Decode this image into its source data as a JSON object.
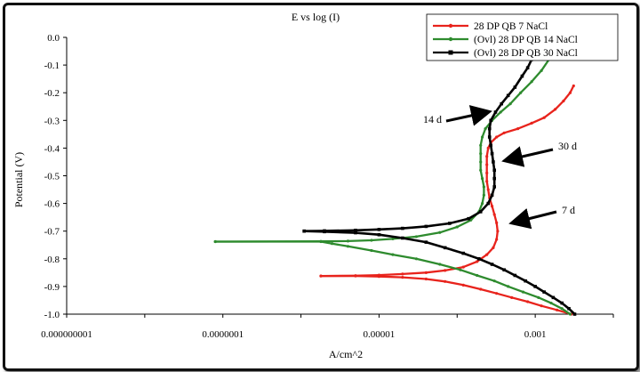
{
  "chart_data": {
    "type": "line",
    "title": "E vs log (I)",
    "xlabel": "A/cm^2",
    "ylabel": "Potential (V)",
    "x_scale": "log",
    "xlim": [
      1e-09,
      0.01
    ],
    "ylim": [
      -1.0,
      0.0
    ],
    "x_ticks": [
      {
        "value": 1e-09,
        "label": "0.000000001"
      },
      {
        "value": 1e-07,
        "label": "0.0000001"
      },
      {
        "value": 1e-05,
        "label": "0.00001"
      },
      {
        "value": 0.001,
        "label": "0.001"
      }
    ],
    "y_ticks": [
      {
        "value": 0.0,
        "label": "0.0"
      },
      {
        "value": -0.1,
        "label": "-0.1"
      },
      {
        "value": -0.2,
        "label": "-0.2"
      },
      {
        "value": -0.3,
        "label": "-0.3"
      },
      {
        "value": -0.4,
        "label": "-0.4"
      },
      {
        "value": -0.5,
        "label": "-0.5"
      },
      {
        "value": -0.6,
        "label": "-0.6"
      },
      {
        "value": -0.7,
        "label": "-0.7"
      },
      {
        "value": -0.8,
        "label": "-0.8"
      },
      {
        "value": -0.9,
        "label": "-0.9"
      },
      {
        "value": -1.0,
        "label": "-1.0"
      }
    ],
    "grid": false,
    "legend": "top-right",
    "series": [
      {
        "name": "28 DP QB 7 NaCl",
        "color": "#e8231c",
        "marker": "dot",
        "cathodic": [
          [
            0.0029,
            -1.0
          ],
          [
            0.0019,
            -0.985
          ],
          [
            0.0012,
            -0.97
          ],
          [
            0.0008,
            -0.955
          ],
          [
            0.0005,
            -0.94
          ],
          [
            0.00032,
            -0.925
          ],
          [
            0.0002,
            -0.91
          ],
          [
            0.00012,
            -0.895
          ],
          [
            7e-05,
            -0.882
          ],
          [
            4e-05,
            -0.873
          ],
          [
            2e-05,
            -0.867
          ],
          [
            1e-05,
            -0.864
          ],
          [
            5e-06,
            -0.862
          ],
          [
            1.8e-06,
            -0.862
          ]
        ],
        "anodic": [
          [
            1.8e-06,
            -0.862
          ],
          [
            5e-06,
            -0.861
          ],
          [
            1e-05,
            -0.859
          ],
          [
            2e-05,
            -0.855
          ],
          [
            4e-05,
            -0.85
          ],
          [
            7e-05,
            -0.842
          ],
          [
            0.00012,
            -0.83
          ],
          [
            0.00018,
            -0.81
          ],
          [
            0.00024,
            -0.785
          ],
          [
            0.00029,
            -0.76
          ],
          [
            0.00032,
            -0.73
          ],
          [
            0.00033,
            -0.7
          ],
          [
            0.00032,
            -0.67
          ],
          [
            0.0003,
            -0.64
          ],
          [
            0.00028,
            -0.61
          ],
          [
            0.00026,
            -0.58
          ],
          [
            0.00025,
            -0.55
          ],
          [
            0.00024,
            -0.52
          ],
          [
            0.00024,
            -0.49
          ],
          [
            0.00024,
            -0.46
          ],
          [
            0.00024,
            -0.43
          ],
          [
            0.00025,
            -0.4
          ],
          [
            0.00027,
            -0.38
          ],
          [
            0.00032,
            -0.36
          ],
          [
            0.0004,
            -0.345
          ],
          [
            0.0006,
            -0.33
          ],
          [
            0.0009,
            -0.31
          ],
          [
            0.0013,
            -0.29
          ],
          [
            0.0018,
            -0.26
          ],
          [
            0.0023,
            -0.23
          ],
          [
            0.0028,
            -0.2
          ],
          [
            0.0031,
            -0.175
          ]
        ]
      },
      {
        "name": "(Ovl) 28 DP QB 14 NaCl",
        "color": "#2e8b2e",
        "marker": "dot",
        "cathodic": [
          [
            0.0028,
            -1.0
          ],
          [
            0.0022,
            -0.98
          ],
          [
            0.0016,
            -0.96
          ],
          [
            0.0011,
            -0.94
          ],
          [
            0.0007,
            -0.92
          ],
          [
            0.00045,
            -0.9
          ],
          [
            0.0003,
            -0.88
          ],
          [
            0.00018,
            -0.86
          ],
          [
            0.00011,
            -0.84
          ],
          [
            6e-05,
            -0.82
          ],
          [
            3e-05,
            -0.8
          ],
          [
            1.5e-05,
            -0.785
          ],
          [
            8e-06,
            -0.77
          ],
          [
            4e-06,
            -0.755
          ],
          [
            2.5e-06,
            -0.745
          ],
          [
            1.8e-06,
            -0.738
          ],
          [
            8e-08,
            -0.738
          ]
        ],
        "anodic": [
          [
            8e-08,
            -0.738
          ],
          [
            1.8e-06,
            -0.737
          ],
          [
            4e-06,
            -0.736
          ],
          [
            8e-06,
            -0.733
          ],
          [
            1.5e-05,
            -0.728
          ],
          [
            3e-05,
            -0.72
          ],
          [
            6e-05,
            -0.705
          ],
          [
            0.0001,
            -0.685
          ],
          [
            0.00015,
            -0.66
          ],
          [
            0.00019,
            -0.63
          ],
          [
            0.00021,
            -0.6
          ],
          [
            0.00022,
            -0.57
          ],
          [
            0.00022,
            -0.54
          ],
          [
            0.00021,
            -0.51
          ],
          [
            0.0002,
            -0.48
          ],
          [
            0.0002,
            -0.45
          ],
          [
            0.0002,
            -0.42
          ],
          [
            0.0002,
            -0.39
          ],
          [
            0.00021,
            -0.36
          ],
          [
            0.00023,
            -0.33
          ],
          [
            0.00028,
            -0.3
          ],
          [
            0.00036,
            -0.27
          ],
          [
            0.00048,
            -0.24
          ],
          [
            0.00065,
            -0.2
          ],
          [
            0.0009,
            -0.16
          ],
          [
            0.0012,
            -0.12
          ],
          [
            0.0015,
            -0.08
          ],
          [
            0.0018,
            -0.05
          ]
        ]
      },
      {
        "name": "(Ovl) 28 DP QB 30 NaCl",
        "color": "#000000",
        "marker": "square",
        "cathodic": [
          [
            0.0032,
            -1.0
          ],
          [
            0.0027,
            -0.98
          ],
          [
            0.0022,
            -0.96
          ],
          [
            0.0017,
            -0.94
          ],
          [
            0.0013,
            -0.92
          ],
          [
            0.001,
            -0.9
          ],
          [
            0.00075,
            -0.88
          ],
          [
            0.00055,
            -0.86
          ],
          [
            0.0004,
            -0.84
          ],
          [
            0.00028,
            -0.82
          ],
          [
            0.00019,
            -0.8
          ],
          [
            0.00012,
            -0.78
          ],
          [
            7e-05,
            -0.76
          ],
          [
            4e-05,
            -0.74
          ],
          [
            2e-05,
            -0.725
          ],
          [
            1e-05,
            -0.713
          ],
          [
            5e-06,
            -0.706
          ],
          [
            2e-06,
            -0.702
          ],
          [
            1.1e-06,
            -0.7
          ]
        ],
        "anodic": [
          [
            1.1e-06,
            -0.7
          ],
          [
            2e-06,
            -0.699
          ],
          [
            5e-06,
            -0.697
          ],
          [
            1e-05,
            -0.694
          ],
          [
            2e-05,
            -0.69
          ],
          [
            4e-05,
            -0.683
          ],
          [
            8e-05,
            -0.672
          ],
          [
            0.00014,
            -0.655
          ],
          [
            0.0002,
            -0.63
          ],
          [
            0.00025,
            -0.6
          ],
          [
            0.00028,
            -0.57
          ],
          [
            0.0003,
            -0.54
          ],
          [
            0.0003,
            -0.51
          ],
          [
            0.0003,
            -0.48
          ],
          [
            0.00029,
            -0.45
          ],
          [
            0.00028,
            -0.42
          ],
          [
            0.00027,
            -0.39
          ],
          [
            0.00026,
            -0.36
          ],
          [
            0.00026,
            -0.33
          ],
          [
            0.00027,
            -0.3
          ],
          [
            0.00031,
            -0.27
          ],
          [
            0.00037,
            -0.24
          ],
          [
            0.00045,
            -0.21
          ],
          [
            0.00055,
            -0.18
          ],
          [
            0.00068,
            -0.14
          ],
          [
            0.0008,
            -0.11
          ],
          [
            0.0009,
            -0.08
          ]
        ]
      }
    ],
    "annotations": [
      {
        "text": "14 d",
        "x": 0.00021,
        "y": -0.3
      },
      {
        "text": "30 d",
        "x": 0.00031,
        "y": -0.44
      },
      {
        "text": "7 d",
        "x": 0.00035,
        "y": -0.66
      }
    ]
  }
}
